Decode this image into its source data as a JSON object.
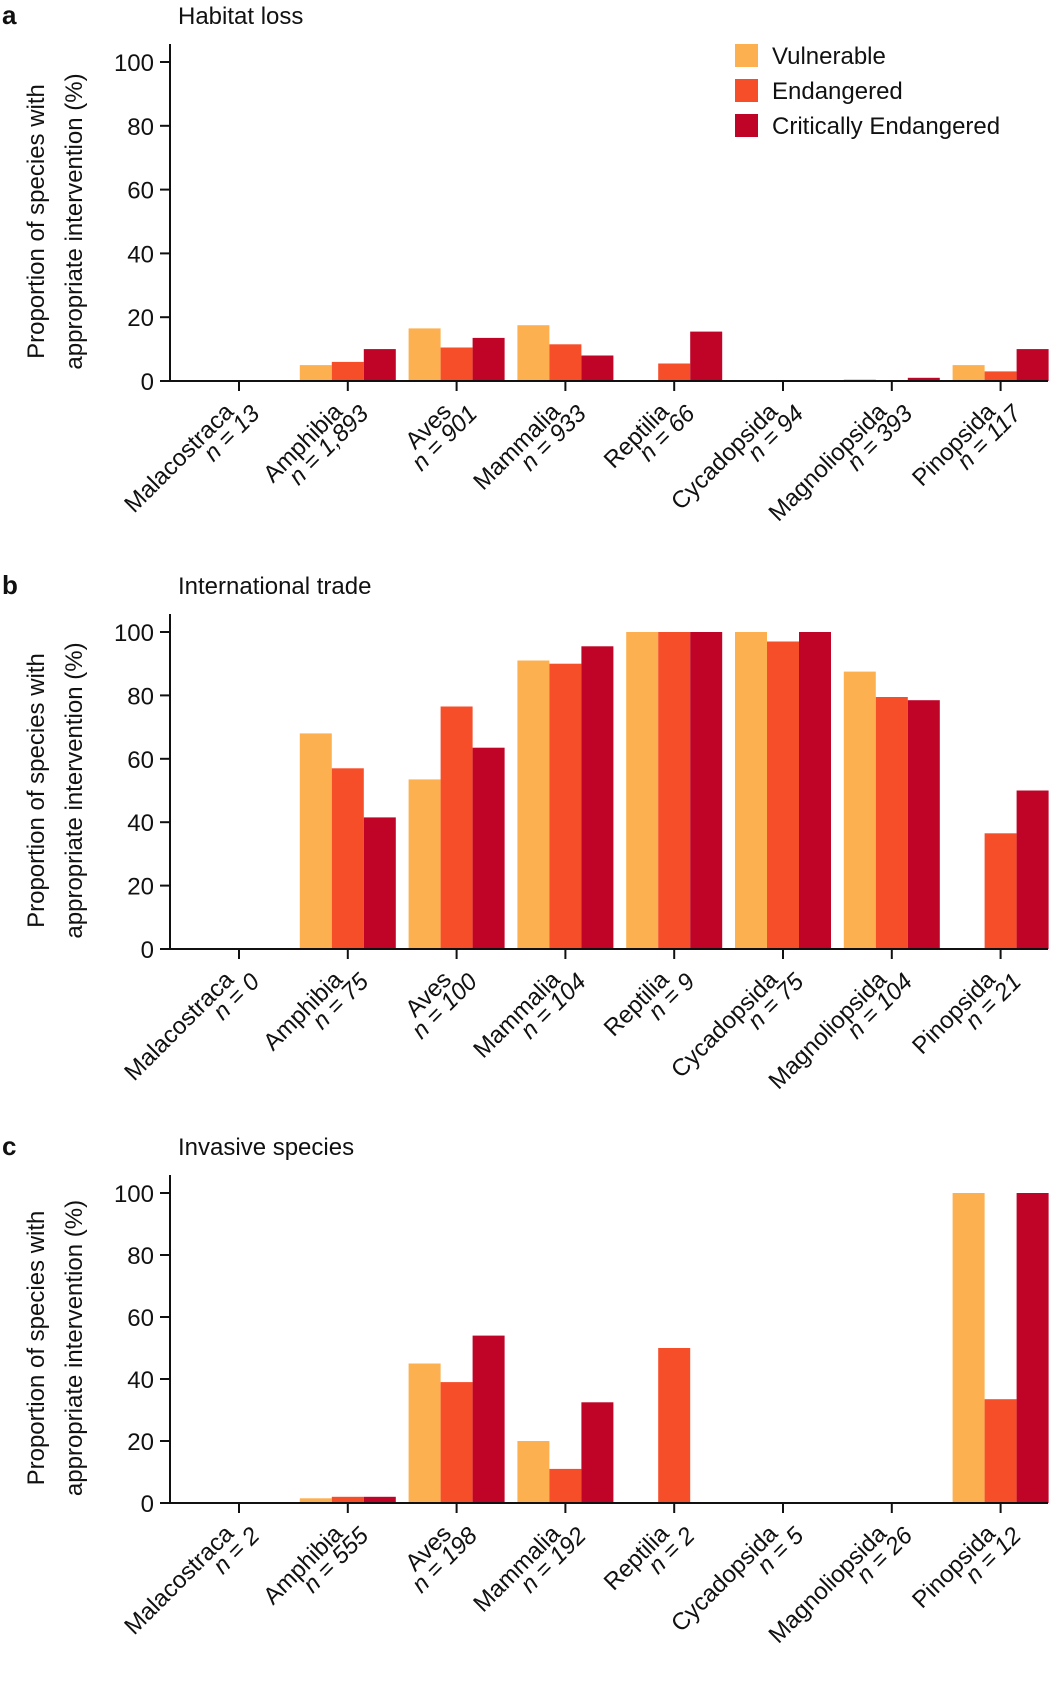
{
  "colors": {
    "Vulnerable": "#FDB04F",
    "Endangered": "#F74E2A",
    "Critically Endangered": "#BF0427",
    "axis": "#111111"
  },
  "legend": [
    "Vulnerable",
    "Endangered",
    "Critically Endangered"
  ],
  "chart_data": [
    {
      "type": "bar",
      "panel": "a",
      "title": "Habitat loss",
      "ylabel_line1": "Proportion of species with",
      "ylabel_line2": "appropriate intervention (%)",
      "ylim": [
        0,
        100
      ],
      "yticks": [
        0,
        20,
        40,
        60,
        80,
        100
      ],
      "categories": [
        "Malacostraca",
        "Amphibia",
        "Aves",
        "Mammalia",
        "Reptilia",
        "Cycadopsida",
        "Magnoliopsida",
        "Pinopsida"
      ],
      "n_labels": [
        "n = 13",
        "n = 1,893",
        "n = 901",
        "n = 933",
        "n = 66",
        "n = 94",
        "n = 393",
        "n = 117"
      ],
      "series": [
        {
          "name": "Vulnerable",
          "values": [
            0,
            5,
            16.5,
            17.5,
            0,
            0,
            0.5,
            5
          ]
        },
        {
          "name": "Endangered",
          "values": [
            0,
            6,
            10.5,
            11.5,
            5.5,
            0,
            0.3,
            3
          ]
        },
        {
          "name": "Critically Endangered",
          "values": [
            0,
            10,
            13.5,
            8,
            15.5,
            0,
            1,
            10
          ]
        }
      ]
    },
    {
      "type": "bar",
      "panel": "b",
      "title": "International trade",
      "ylabel_line1": "Proportion of species with",
      "ylabel_line2": "appropriate intervention (%)",
      "ylim": [
        0,
        100
      ],
      "yticks": [
        0,
        20,
        40,
        60,
        80,
        100
      ],
      "categories": [
        "Malacostraca",
        "Amphibia",
        "Aves",
        "Mammalia",
        "Reptilia",
        "Cycadopsida",
        "Magnoliopsida",
        "Pinopsida"
      ],
      "n_labels": [
        "n = 0",
        "n = 75",
        "n = 100",
        "n = 104",
        "n = 9",
        "n = 75",
        "n = 104",
        "n = 21"
      ],
      "series": [
        {
          "name": "Vulnerable",
          "values": [
            0,
            68,
            53.5,
            91,
            100,
            100,
            87.5,
            0
          ]
        },
        {
          "name": "Endangered",
          "values": [
            0,
            57,
            76.5,
            90,
            100,
            97,
            79.5,
            36.5
          ]
        },
        {
          "name": "Critically Endangered",
          "values": [
            0,
            41.5,
            63.5,
            95.5,
            100,
            100,
            78.5,
            50
          ]
        }
      ]
    },
    {
      "type": "bar",
      "panel": "c",
      "title": "Invasive species",
      "ylabel_line1": "Proportion of species with",
      "ylabel_line2": "appropriate intervention (%)",
      "ylim": [
        0,
        100
      ],
      "yticks": [
        0,
        20,
        40,
        60,
        80,
        100
      ],
      "categories": [
        "Malacostraca",
        "Amphibia",
        "Aves",
        "Mammalia",
        "Reptilia",
        "Cycadopsida",
        "Magnoliopsida",
        "Pinopsida"
      ],
      "n_labels": [
        "n = 2",
        "n = 555",
        "n = 198",
        "n = 192",
        "n = 2",
        "n = 5",
        "n = 26",
        "n = 12"
      ],
      "series": [
        {
          "name": "Vulnerable",
          "values": [
            0,
            1.5,
            45,
            20,
            0,
            0,
            0,
            100
          ]
        },
        {
          "name": "Endangered",
          "values": [
            0,
            2,
            39,
            11,
            50,
            0,
            0,
            33.5
          ]
        },
        {
          "name": "Critically Endangered",
          "values": [
            0,
            2,
            54,
            32.5,
            0,
            0,
            0,
            100
          ]
        }
      ]
    }
  ]
}
